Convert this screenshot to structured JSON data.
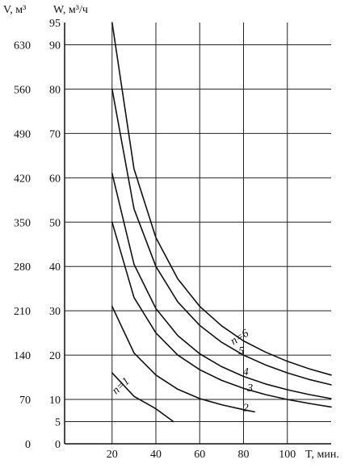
{
  "chart_data": {
    "type": "line",
    "axes": {
      "y_left_outer_title": "V, м³",
      "y_left_inner_title": "W, м³/ч",
      "x_title": "T, мин."
    },
    "xlim": [
      0,
      120
    ],
    "ylim_W": [
      0,
      95
    ],
    "ylim_V": [
      0,
      665
    ],
    "x_ticks": [
      {
        "value": 20,
        "label": "20"
      },
      {
        "value": 40,
        "label": "40"
      },
      {
        "value": 60,
        "label": "60"
      },
      {
        "value": 80,
        "label": "80"
      },
      {
        "value": 100,
        "label": "100"
      }
    ],
    "w_ticks": [
      {
        "value": 0,
        "label": "0"
      },
      {
        "value": 5,
        "label": "5"
      },
      {
        "value": 10,
        "label": "10"
      },
      {
        "value": 20,
        "label": "20"
      },
      {
        "value": 30,
        "label": "30"
      },
      {
        "value": 40,
        "label": "40"
      },
      {
        "value": 50,
        "label": "50"
      },
      {
        "value": 60,
        "label": "60"
      },
      {
        "value": 70,
        "label": "70"
      },
      {
        "value": 80,
        "label": "80"
      },
      {
        "value": 90,
        "label": "90"
      },
      {
        "value": 95,
        "label": "95"
      }
    ],
    "v_ticks": [
      {
        "value": 0,
        "label": "0"
      },
      {
        "value": 70,
        "label": "70"
      },
      {
        "value": 140,
        "label": "140"
      },
      {
        "value": 210,
        "label": "210"
      },
      {
        "value": 280,
        "label": "280"
      },
      {
        "value": 350,
        "label": "350"
      },
      {
        "value": 420,
        "label": "420"
      },
      {
        "value": 490,
        "label": "490"
      },
      {
        "value": 560,
        "label": "560"
      },
      {
        "value": 630,
        "label": "630"
      }
    ],
    "x_gridlines": [
      20,
      40,
      60,
      80,
      100
    ],
    "w_gridlines": [
      5,
      10,
      20,
      30,
      40,
      50,
      60,
      70,
      80,
      90
    ],
    "series": [
      {
        "name": "n=1",
        "points": [
          [
            20,
            16
          ],
          [
            30,
            10.7
          ],
          [
            40,
            7.9
          ],
          [
            48,
            5
          ]
        ]
      },
      {
        "name": "2",
        "points": [
          [
            20,
            31
          ],
          [
            30,
            20.5
          ],
          [
            40,
            15.5
          ],
          [
            50,
            12.3
          ],
          [
            60,
            10.2
          ],
          [
            70,
            8.8
          ],
          [
            80,
            7.7
          ],
          [
            85,
            7.2
          ]
        ]
      },
      {
        "name": "3",
        "points": [
          [
            20,
            50
          ],
          [
            30,
            33
          ],
          [
            40,
            25
          ],
          [
            50,
            20
          ],
          [
            60,
            16.7
          ],
          [
            70,
            14.3
          ],
          [
            80,
            12.5
          ],
          [
            90,
            11.1
          ],
          [
            100,
            10
          ],
          [
            110,
            9.1
          ],
          [
            120,
            8.3
          ]
        ]
      },
      {
        "name": "4",
        "points": [
          [
            20,
            61
          ],
          [
            30,
            40.5
          ],
          [
            40,
            30.5
          ],
          [
            50,
            24.4
          ],
          [
            60,
            20.3
          ],
          [
            70,
            17.4
          ],
          [
            80,
            15.2
          ],
          [
            90,
            13.5
          ],
          [
            100,
            12.2
          ],
          [
            110,
            11.1
          ],
          [
            120,
            10.2
          ]
        ]
      },
      {
        "name": "5",
        "points": [
          [
            20,
            80
          ],
          [
            30,
            53
          ],
          [
            40,
            40
          ],
          [
            50,
            32
          ],
          [
            60,
            26.7
          ],
          [
            70,
            22.9
          ],
          [
            80,
            20
          ],
          [
            90,
            17.8
          ],
          [
            100,
            16
          ],
          [
            110,
            14.5
          ],
          [
            120,
            13.3
          ]
        ]
      },
      {
        "name": "n=6",
        "points": [
          [
            20,
            95
          ],
          [
            30,
            62
          ],
          [
            40,
            46.5
          ],
          [
            50,
            37.2
          ],
          [
            60,
            31
          ],
          [
            70,
            26.6
          ],
          [
            80,
            23.2
          ],
          [
            90,
            20.7
          ],
          [
            100,
            18.6
          ],
          [
            110,
            16.9
          ],
          [
            120,
            15.5
          ]
        ]
      }
    ],
    "curve_labels": [
      {
        "text": "n=1",
        "x": 25,
        "y": 12.5,
        "rotate": -42
      },
      {
        "text": "2",
        "x": 81,
        "y": 7.4,
        "rotate": 0
      },
      {
        "text": "3",
        "x": 83,
        "y": 11.8,
        "rotate": 0
      },
      {
        "text": "4",
        "x": 81,
        "y": 15.5,
        "rotate": 0
      },
      {
        "text": "5",
        "x": 79,
        "y": 20.2,
        "rotate": 0
      },
      {
        "text": "n=6",
        "x": 79,
        "y": 23.4,
        "rotate": -32
      }
    ],
    "grid": true,
    "line_color": "#111111",
    "grid_color": "#222222"
  }
}
